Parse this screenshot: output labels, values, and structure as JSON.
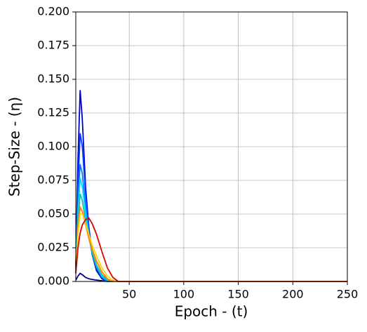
{
  "chart_data": {
    "type": "line",
    "x_label": "Epoch - (t)",
    "y_label": "Step-Size - (η)",
    "x": [
      1,
      3,
      5,
      7,
      10,
      13,
      16,
      20,
      25,
      30,
      35,
      40,
      50,
      100,
      150,
      200,
      250
    ],
    "series": [
      {
        "color": "#00008b",
        "values": [
          0.001,
          0.004,
          0.006,
          0.005,
          0.003,
          0.002,
          0.0015,
          0.001,
          0.0005,
          0,
          0,
          0,
          0,
          0,
          0,
          0,
          0
        ]
      },
      {
        "color": "#0000cd",
        "values": [
          0.01,
          0.09,
          0.142,
          0.12,
          0.07,
          0.04,
          0.02,
          0.008,
          0.002,
          0,
          0,
          0,
          0,
          0,
          0,
          0,
          0
        ]
      },
      {
        "color": "#0040ff",
        "values": [
          0.01,
          0.07,
          0.11,
          0.1,
          0.065,
          0.04,
          0.022,
          0.01,
          0.003,
          0,
          0,
          0,
          0,
          0,
          0,
          0,
          0
        ]
      },
      {
        "color": "#0080ff",
        "values": [
          0.01,
          0.06,
          0.087,
          0.08,
          0.055,
          0.035,
          0.02,
          0.01,
          0.003,
          0,
          0,
          0,
          0,
          0,
          0,
          0,
          0
        ]
      },
      {
        "color": "#00e0ff",
        "values": [
          0.008,
          0.05,
          0.077,
          0.07,
          0.05,
          0.035,
          0.022,
          0.012,
          0.004,
          0.001,
          0,
          0,
          0,
          0,
          0,
          0,
          0
        ]
      },
      {
        "color": "#20c0a0",
        "values": [
          0.007,
          0.045,
          0.065,
          0.06,
          0.045,
          0.032,
          0.022,
          0.012,
          0.005,
          0.001,
          0,
          0,
          0,
          0,
          0,
          0,
          0
        ]
      },
      {
        "color": "#ff8000",
        "values": [
          0.006,
          0.04,
          0.055,
          0.052,
          0.042,
          0.032,
          0.024,
          0.015,
          0.007,
          0.002,
          0,
          0,
          0,
          0,
          0,
          0,
          0
        ]
      },
      {
        "color": "#ffd700",
        "values": [
          0.006,
          0.035,
          0.05,
          0.05,
          0.043,
          0.035,
          0.027,
          0.019,
          0.01,
          0.004,
          0.001,
          0,
          0,
          0,
          0,
          0,
          0
        ]
      },
      {
        "color": "#e00000",
        "values": [
          0.006,
          0.025,
          0.036,
          0.042,
          0.046,
          0.047,
          0.043,
          0.035,
          0.022,
          0.01,
          0.003,
          0,
          0,
          0,
          0,
          0,
          0
        ]
      }
    ],
    "xlim": [
      1,
      250
    ],
    "xticks": [
      50,
      100,
      150,
      200,
      250
    ],
    "ylim": [
      0,
      0.2
    ],
    "yticks": [
      {
        "value": 0,
        "label": "0.000"
      },
      {
        "value": 0.025,
        "label": "0.025"
      },
      {
        "value": 0.05,
        "label": "0.050"
      },
      {
        "value": 0.075,
        "label": "0.075"
      },
      {
        "value": 0.1,
        "label": "0.100"
      },
      {
        "value": 0.125,
        "label": "0.125"
      },
      {
        "value": 0.15,
        "label": "0.150"
      },
      {
        "value": 0.175,
        "label": "0.175"
      },
      {
        "value": 0.2,
        "label": "0.200"
      }
    ],
    "grid": true
  }
}
